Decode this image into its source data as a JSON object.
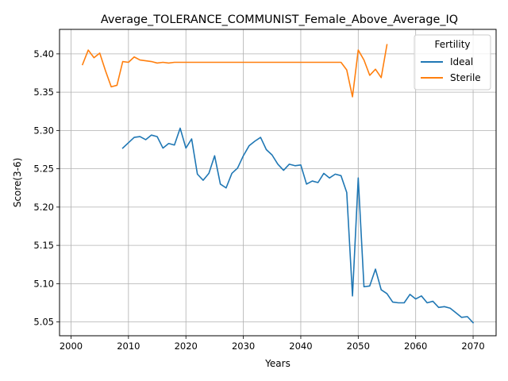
{
  "chart_data": {
    "type": "line",
    "title": "Average_TOLERANCE_COMMUNIST_Female_Above_Average_IQ",
    "xlabel": "Years",
    "ylabel": "Score(3-6)",
    "xlim": [
      1998,
      2074
    ],
    "ylim": [
      5.032,
      5.432
    ],
    "xticks": [
      2000,
      2010,
      2020,
      2030,
      2040,
      2050,
      2060,
      2070
    ],
    "yticks": [
      5.05,
      5.1,
      5.15,
      5.2,
      5.25,
      5.3,
      5.35,
      5.4
    ],
    "ytick_labels": [
      "5.05",
      "5.10",
      "5.15",
      "5.20",
      "5.25",
      "5.30",
      "5.35",
      "5.40"
    ],
    "grid": true,
    "legend": {
      "title": "Fertility",
      "position": "top-right"
    },
    "series": [
      {
        "name": "Ideal",
        "color": "#1f77b4",
        "x": [
          2009,
          2010,
          2011,
          2012,
          2013,
          2014,
          2015,
          2016,
          2017,
          2018,
          2019,
          2020,
          2021,
          2022,
          2023,
          2024,
          2025,
          2026,
          2027,
          2028,
          2029,
          2030,
          2031,
          2032,
          2033,
          2034,
          2035,
          2036,
          2037,
          2038,
          2039,
          2040,
          2041,
          2042,
          2043,
          2044,
          2045,
          2046,
          2047,
          2048,
          2049,
          2050,
          2051,
          2052,
          2053,
          2054,
          2055,
          2056,
          2057,
          2058,
          2059,
          2060,
          2061,
          2062,
          2063,
          2064,
          2065,
          2066,
          2067,
          2068,
          2069,
          2070
        ],
        "values": [
          5.277,
          5.284,
          5.291,
          5.292,
          5.288,
          5.294,
          5.292,
          5.277,
          5.283,
          5.281,
          5.303,
          5.277,
          5.289,
          5.243,
          5.235,
          5.244,
          5.267,
          5.23,
          5.225,
          5.244,
          5.251,
          5.267,
          5.28,
          5.286,
          5.291,
          5.275,
          5.268,
          5.256,
          5.248,
          5.256,
          5.254,
          5.255,
          5.23,
          5.234,
          5.232,
          5.244,
          5.238,
          5.243,
          5.241,
          5.219,
          5.084,
          5.238,
          5.096,
          5.097,
          5.119,
          5.092,
          5.087,
          5.076,
          5.075,
          5.075,
          5.086,
          5.08,
          5.084,
          5.075,
          5.077,
          5.069,
          5.07,
          5.068,
          5.062,
          5.056,
          5.057,
          5.049
        ]
      },
      {
        "name": "Sterile",
        "color": "#ff7f0e",
        "x": [
          2002,
          2003,
          2004,
          2005,
          2006,
          2007,
          2008,
          2009,
          2010,
          2011,
          2012,
          2013,
          2014,
          2015,
          2016,
          2017,
          2018,
          2019,
          2020,
          2021,
          2022,
          2023,
          2024,
          2025,
          2026,
          2027,
          2028,
          2029,
          2030,
          2031,
          2032,
          2033,
          2034,
          2035,
          2036,
          2037,
          2038,
          2039,
          2040,
          2041,
          2042,
          2043,
          2044,
          2045,
          2046,
          2047,
          2048,
          2049,
          2050,
          2051,
          2052,
          2053,
          2054,
          2055
        ],
        "values": [
          5.386,
          5.405,
          5.395,
          5.401,
          5.378,
          5.357,
          5.359,
          5.39,
          5.389,
          5.396,
          5.392,
          5.391,
          5.39,
          5.388,
          5.389,
          5.388,
          5.389,
          5.389,
          5.389,
          5.389,
          5.389,
          5.389,
          5.389,
          5.389,
          5.389,
          5.389,
          5.389,
          5.389,
          5.389,
          5.389,
          5.389,
          5.389,
          5.389,
          5.389,
          5.389,
          5.389,
          5.389,
          5.389,
          5.389,
          5.389,
          5.389,
          5.389,
          5.389,
          5.389,
          5.389,
          5.389,
          5.379,
          5.344,
          5.405,
          5.392,
          5.372,
          5.38,
          5.369,
          5.412
        ]
      }
    ]
  }
}
